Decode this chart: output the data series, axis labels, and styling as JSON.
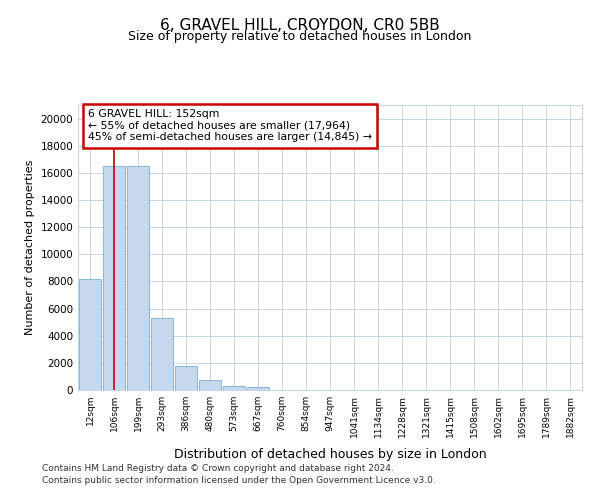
{
  "title_line1": "6, GRAVEL HILL, CROYDON, CR0 5BB",
  "title_line2": "Size of property relative to detached houses in London",
  "xlabel": "Distribution of detached houses by size in London",
  "ylabel": "Number of detached properties",
  "categories": [
    "12sqm",
    "106sqm",
    "199sqm",
    "293sqm",
    "386sqm",
    "480sqm",
    "573sqm",
    "667sqm",
    "760sqm",
    "854sqm",
    "947sqm",
    "1041sqm",
    "1134sqm",
    "1228sqm",
    "1321sqm",
    "1415sqm",
    "1508sqm",
    "1602sqm",
    "1695sqm",
    "1789sqm",
    "1882sqm"
  ],
  "values": [
    8200,
    16500,
    16500,
    5300,
    1800,
    750,
    300,
    250,
    0,
    0,
    0,
    0,
    0,
    0,
    0,
    0,
    0,
    0,
    0,
    0,
    0
  ],
  "bar_color": "#c5d8ed",
  "bar_edge_color": "#7aafd4",
  "grid_color": "#c8d4e3",
  "background_color": "#ffffff",
  "annotation_box_text_line1": "6 GRAVEL HILL: 152sqm",
  "annotation_box_text_line2": "← 55% of detached houses are smaller (17,964)",
  "annotation_box_text_line3": "45% of semi-detached houses are larger (14,845) →",
  "annotation_box_edge_color": "#cc0000",
  "vline_x_index": 1.0,
  "vline_color": "#cc0000",
  "ylim": [
    0,
    21000
  ],
  "yticks": [
    0,
    2000,
    4000,
    6000,
    8000,
    10000,
    12000,
    14000,
    16000,
    18000,
    20000
  ],
  "footer_line1": "Contains HM Land Registry data © Crown copyright and database right 2024.",
  "footer_line2": "Contains public sector information licensed under the Open Government Licence v3.0.",
  "title_fontsize": 11,
  "subtitle_fontsize": 9,
  "ylabel_fontsize": 8,
  "xlabel_fontsize": 9
}
